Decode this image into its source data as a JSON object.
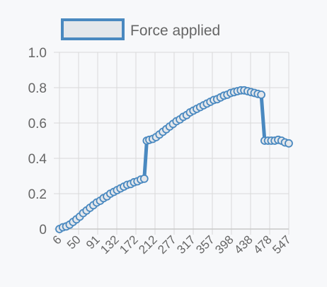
{
  "chart_data": {
    "type": "line",
    "legend": {
      "position": "top-left",
      "entries": [
        "Force applied"
      ]
    },
    "series": [
      {
        "name": "Force applied",
        "color": "#4a89c0",
        "fill": "#e4e7eb",
        "x": [
          6,
          14,
          22,
          30,
          38,
          46,
          54,
          62,
          70,
          78,
          86,
          94,
          102,
          110,
          118,
          126,
          134,
          142,
          150,
          158,
          166,
          174,
          182,
          190,
          198,
          206,
          212,
          218,
          226,
          234,
          242,
          250,
          258,
          266,
          274,
          282,
          290,
          298,
          306,
          314,
          322,
          330,
          338,
          346,
          354,
          362,
          370,
          378,
          386,
          394,
          402,
          410,
          418,
          426,
          434,
          442,
          450,
          458,
          466,
          474,
          482,
          490,
          498,
          506,
          514,
          522,
          530,
          538,
          547
        ],
        "y": [
          0.0,
          0.01,
          0.015,
          0.025,
          0.04,
          0.055,
          0.07,
          0.09,
          0.105,
          0.12,
          0.135,
          0.15,
          0.16,
          0.175,
          0.185,
          0.2,
          0.21,
          0.22,
          0.23,
          0.24,
          0.25,
          0.255,
          0.265,
          0.27,
          0.28,
          0.285,
          0.5,
          0.505,
          0.51,
          0.52,
          0.535,
          0.55,
          0.565,
          0.58,
          0.595,
          0.61,
          0.62,
          0.635,
          0.645,
          0.66,
          0.67,
          0.68,
          0.69,
          0.7,
          0.71,
          0.72,
          0.73,
          0.735,
          0.745,
          0.755,
          0.76,
          0.77,
          0.775,
          0.78,
          0.785,
          0.785,
          0.78,
          0.775,
          0.77,
          0.765,
          0.76,
          0.5,
          0.5,
          0.5,
          0.5,
          0.505,
          0.5,
          0.49,
          0.485
        ]
      }
    ],
    "x_tick_labels": [
      "6",
      "50",
      "91",
      "132",
      "172",
      "212",
      "277",
      "317",
      "357",
      "398",
      "438",
      "478",
      "547"
    ],
    "y_ticks": [
      0,
      0.2,
      0.4,
      0.6,
      0.8,
      1.0
    ],
    "y_tick_labels": [
      "0",
      "0.2",
      "0.4",
      "0.6",
      "0.8",
      "1.0"
    ],
    "ylim": [
      0,
      1.0
    ],
    "grid": true
  }
}
